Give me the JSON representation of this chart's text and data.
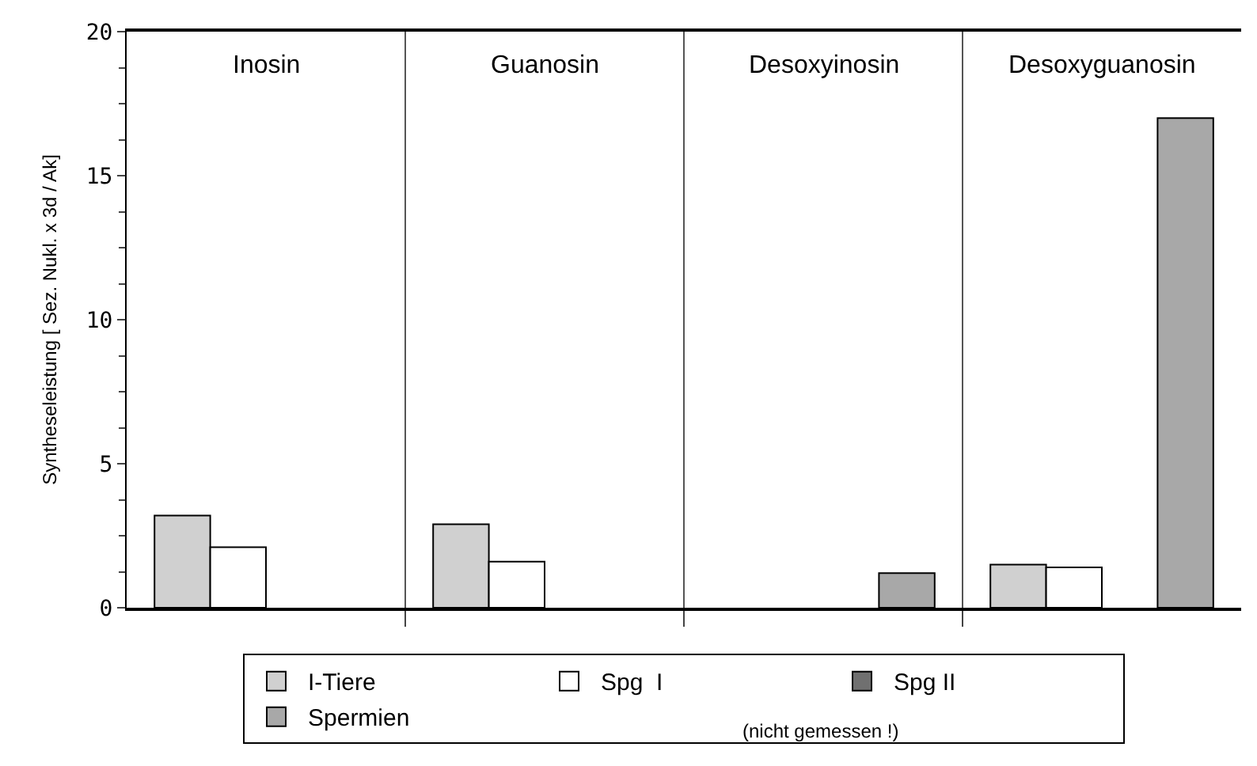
{
  "chart_data": {
    "type": "bar",
    "ylabel": "Syntheseleistung [ Sez. Nukl. x 3d / Ak]",
    "categories": [
      "Inosin",
      "Guanosin",
      "Desoxyinosin",
      "Desoxyguanosin"
    ],
    "series": [
      {
        "name": "I-Tiere",
        "color": "#d0d0d0",
        "values": [
          3.2,
          2.9,
          null,
          1.5
        ]
      },
      {
        "name": "Spg  I",
        "color": "#ffffff",
        "values": [
          2.1,
          1.6,
          null,
          1.4
        ]
      },
      {
        "name": "Spg II",
        "color": "#707070",
        "values": [
          null,
          null,
          null,
          null
        ]
      },
      {
        "name": "Spermien",
        "color": "#a8a8a8",
        "values": [
          null,
          null,
          1.2,
          17
        ]
      }
    ],
    "ylim": [
      0,
      20
    ],
    "yticks": [
      0,
      5,
      10,
      15,
      20
    ],
    "grid": "x",
    "legend": "bottom",
    "annotations": [
      "(nicht gemessen !)"
    ]
  }
}
